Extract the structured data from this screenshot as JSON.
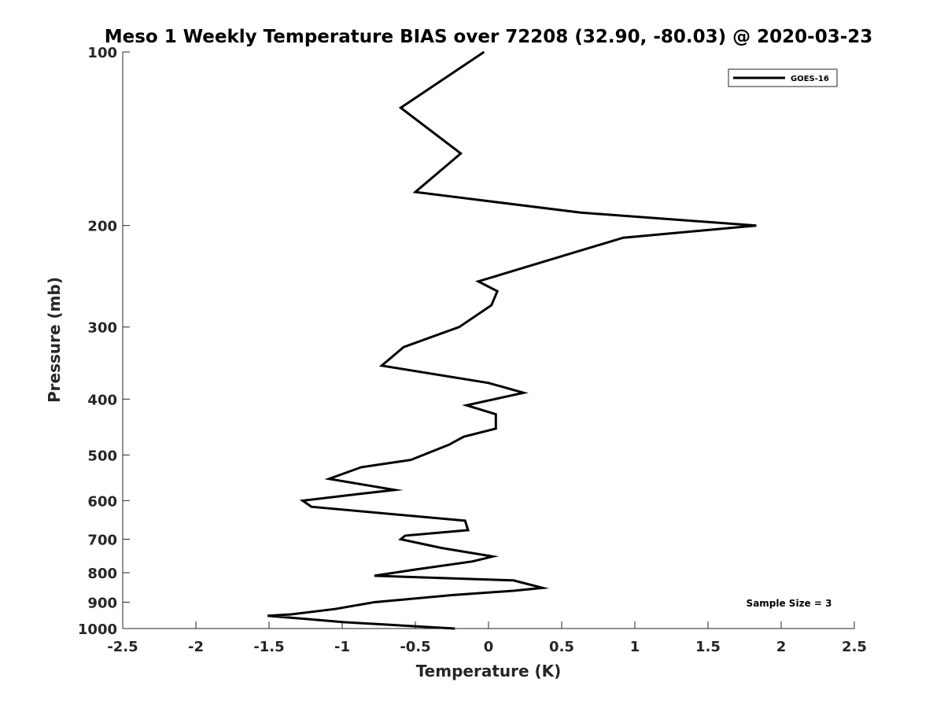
{
  "chart_data": {
    "type": "line",
    "title": "Meso 1 Weekly Temperature BIAS over 72208 (32.90, -80.03) @ 2020-03-23",
    "xlabel": "Temperature (K)",
    "ylabel": "Pressure (mb)",
    "xlim": [
      -2.5,
      2.5
    ],
    "ylim": [
      100,
      1000
    ],
    "y_scale": "log",
    "y_reversed": true,
    "grid": false,
    "legend_position": "top-right",
    "x_ticks": [
      -2.5,
      -2,
      -1.5,
      -1,
      -0.5,
      0,
      0.5,
      1,
      1.5,
      2,
      2.5
    ],
    "x_tick_labels": [
      "-2.5",
      "-2",
      "-1.5",
      "-1",
      "-0.5",
      "0",
      "0.5",
      "1",
      "1.5",
      "2",
      "2.5"
    ],
    "y_ticks": [
      100,
      200,
      300,
      400,
      500,
      600,
      700,
      800,
      900,
      1000
    ],
    "y_tick_labels": [
      "100",
      "200",
      "300",
      "400",
      "500",
      "600",
      "700",
      "800",
      "900",
      "1000"
    ],
    "series": [
      {
        "name": "GOES-16",
        "color": "#000000",
        "points": [
          {
            "x": -0.03,
            "y": 100
          },
          {
            "x": -0.6,
            "y": 125
          },
          {
            "x": -0.19,
            "y": 150
          },
          {
            "x": -0.5,
            "y": 175
          },
          {
            "x": 0.63,
            "y": 190
          },
          {
            "x": 1.83,
            "y": 200
          },
          {
            "x": 0.92,
            "y": 210
          },
          {
            "x": -0.07,
            "y": 250
          },
          {
            "x": 0.06,
            "y": 260
          },
          {
            "x": 0.02,
            "y": 275
          },
          {
            "x": -0.2,
            "y": 300
          },
          {
            "x": -0.58,
            "y": 325
          },
          {
            "x": -0.73,
            "y": 350
          },
          {
            "x": 0.0,
            "y": 375
          },
          {
            "x": 0.24,
            "y": 390
          },
          {
            "x": -0.15,
            "y": 410
          },
          {
            "x": 0.05,
            "y": 425
          },
          {
            "x": 0.05,
            "y": 450
          },
          {
            "x": -0.17,
            "y": 465
          },
          {
            "x": -0.27,
            "y": 480
          },
          {
            "x": -0.53,
            "y": 510
          },
          {
            "x": -0.87,
            "y": 525
          },
          {
            "x": -1.09,
            "y": 550
          },
          {
            "x": -0.64,
            "y": 575
          },
          {
            "x": -0.9,
            "y": 585
          },
          {
            "x": -1.27,
            "y": 600
          },
          {
            "x": -1.21,
            "y": 615
          },
          {
            "x": -0.16,
            "y": 650
          },
          {
            "x": -0.14,
            "y": 675
          },
          {
            "x": -0.57,
            "y": 690
          },
          {
            "x": -0.6,
            "y": 700
          },
          {
            "x": -0.32,
            "y": 725
          },
          {
            "x": 0.03,
            "y": 750
          },
          {
            "x": -0.11,
            "y": 765
          },
          {
            "x": -0.5,
            "y": 790
          },
          {
            "x": -0.78,
            "y": 810
          },
          {
            "x": 0.17,
            "y": 825
          },
          {
            "x": 0.37,
            "y": 850
          },
          {
            "x": 0.17,
            "y": 860
          },
          {
            "x": -0.25,
            "y": 875
          },
          {
            "x": -0.78,
            "y": 900
          },
          {
            "x": -1.05,
            "y": 925
          },
          {
            "x": -1.35,
            "y": 945
          },
          {
            "x": -1.51,
            "y": 950
          },
          {
            "x": -0.99,
            "y": 975
          },
          {
            "x": -0.23,
            "y": 1000
          }
        ]
      }
    ],
    "annotations": [
      "Sample Size = 3"
    ]
  }
}
